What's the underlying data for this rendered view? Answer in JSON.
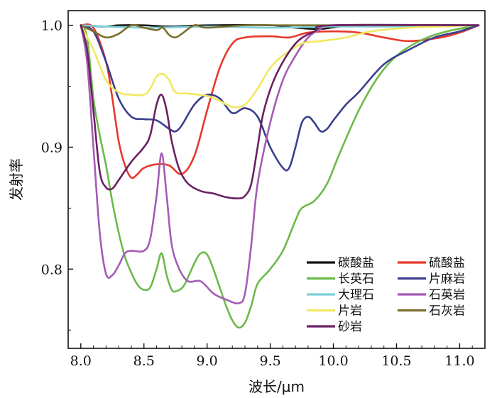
{
  "chart_data": {
    "type": "line",
    "title": "",
    "xlabel": "波长/μm",
    "ylabel": "发射率",
    "xlim": [
      7.9,
      11.2
    ],
    "ylim": [
      0.735,
      1.012
    ],
    "xticks": [
      8.0,
      8.5,
      9.0,
      9.5,
      10.0,
      10.5,
      11.0
    ],
    "xtick_labels": [
      "8.0",
      "8.5",
      "9.0",
      "9.5",
      "10.0",
      "10.5",
      "11.0"
    ],
    "yticks": [
      0.8,
      0.9,
      1.0
    ],
    "ytick_labels": [
      "0.8",
      "0.9",
      "1.0"
    ],
    "grid": false,
    "legend_position": "bottom-right",
    "series": [
      {
        "name": "碳酸盐",
        "color": "#111111",
        "points": [
          [
            8.0,
            1.0
          ],
          [
            8.2,
            0.999
          ],
          [
            8.3,
            1.0
          ],
          [
            8.5,
            1.0
          ],
          [
            8.7,
            0.999
          ],
          [
            9.0,
            1.0
          ],
          [
            9.5,
            1.0
          ],
          [
            9.7,
            0.998
          ],
          [
            9.9,
            0.997
          ],
          [
            10.2,
            1.0
          ],
          [
            11.15,
            1.0
          ]
        ]
      },
      {
        "name": "硫酸盐",
        "color": "#e8382a",
        "points": [
          [
            8.0,
            1.0
          ],
          [
            8.1,
            0.998
          ],
          [
            8.2,
            0.97
          ],
          [
            8.25,
            0.94
          ],
          [
            8.3,
            0.905
          ],
          [
            8.35,
            0.885
          ],
          [
            8.4,
            0.875
          ],
          [
            8.45,
            0.878
          ],
          [
            8.5,
            0.883
          ],
          [
            8.6,
            0.886
          ],
          [
            8.7,
            0.885
          ],
          [
            8.8,
            0.878
          ],
          [
            8.9,
            0.893
          ],
          [
            9.0,
            0.93
          ],
          [
            9.1,
            0.965
          ],
          [
            9.2,
            0.985
          ],
          [
            9.3,
            0.99
          ],
          [
            9.5,
            0.991
          ],
          [
            9.65,
            0.99
          ],
          [
            9.8,
            0.994
          ],
          [
            10.0,
            0.995
          ],
          [
            10.2,
            0.994
          ],
          [
            10.4,
            0.99
          ],
          [
            10.6,
            0.987
          ],
          [
            10.85,
            0.99
          ],
          [
            11.0,
            0.994
          ],
          [
            11.15,
            1.0
          ]
        ]
      },
      {
        "name": "长英石",
        "color": "#6cba48",
        "points": [
          [
            8.0,
            1.0
          ],
          [
            8.05,
            0.99
          ],
          [
            8.1,
            0.94
          ],
          [
            8.15,
            0.91
          ],
          [
            8.2,
            0.885
          ],
          [
            8.25,
            0.855
          ],
          [
            8.3,
            0.83
          ],
          [
            8.35,
            0.81
          ],
          [
            8.4,
            0.797
          ],
          [
            8.45,
            0.787
          ],
          [
            8.5,
            0.783
          ],
          [
            8.55,
            0.785
          ],
          [
            8.6,
            0.8
          ],
          [
            8.64,
            0.813
          ],
          [
            8.68,
            0.795
          ],
          [
            8.72,
            0.783
          ],
          [
            8.76,
            0.782
          ],
          [
            8.82,
            0.787
          ],
          [
            8.9,
            0.805
          ],
          [
            8.95,
            0.813
          ],
          [
            9.0,
            0.812
          ],
          [
            9.05,
            0.8
          ],
          [
            9.1,
            0.785
          ],
          [
            9.15,
            0.77
          ],
          [
            9.2,
            0.758
          ],
          [
            9.25,
            0.752
          ],
          [
            9.3,
            0.756
          ],
          [
            9.35,
            0.77
          ],
          [
            9.4,
            0.788
          ],
          [
            9.5,
            0.8
          ],
          [
            9.6,
            0.815
          ],
          [
            9.7,
            0.84
          ],
          [
            9.75,
            0.85
          ],
          [
            9.85,
            0.856
          ],
          [
            9.95,
            0.87
          ],
          [
            10.05,
            0.895
          ],
          [
            10.2,
            0.93
          ],
          [
            10.35,
            0.957
          ],
          [
            10.5,
            0.975
          ],
          [
            10.7,
            0.988
          ],
          [
            10.9,
            0.995
          ],
          [
            11.15,
            1.0
          ]
        ]
      },
      {
        "name": "片麻岩",
        "color": "#3b3f8e",
        "points": [
          [
            8.0,
            1.0
          ],
          [
            8.1,
            0.995
          ],
          [
            8.2,
            0.97
          ],
          [
            8.3,
            0.94
          ],
          [
            8.4,
            0.925
          ],
          [
            8.5,
            0.923
          ],
          [
            8.6,
            0.922
          ],
          [
            8.7,
            0.915
          ],
          [
            8.75,
            0.913
          ],
          [
            8.8,
            0.918
          ],
          [
            8.9,
            0.935
          ],
          [
            9.0,
            0.943
          ],
          [
            9.1,
            0.94
          ],
          [
            9.2,
            0.928
          ],
          [
            9.3,
            0.932
          ],
          [
            9.4,
            0.925
          ],
          [
            9.5,
            0.9
          ],
          [
            9.6,
            0.883
          ],
          [
            9.65,
            0.883
          ],
          [
            9.7,
            0.9
          ],
          [
            9.75,
            0.92
          ],
          [
            9.8,
            0.925
          ],
          [
            9.85,
            0.92
          ],
          [
            9.9,
            0.913
          ],
          [
            9.95,
            0.915
          ],
          [
            10.0,
            0.922
          ],
          [
            10.1,
            0.935
          ],
          [
            10.2,
            0.945
          ],
          [
            10.4,
            0.968
          ],
          [
            10.6,
            0.98
          ],
          [
            10.8,
            0.99
          ],
          [
            11.0,
            0.995
          ],
          [
            11.15,
            1.0
          ]
        ]
      },
      {
        "name": "大理石",
        "color": "#7ecdd6",
        "points": [
          [
            8.0,
            1.0
          ],
          [
            8.5,
            0.998
          ],
          [
            9.0,
            0.999
          ],
          [
            9.5,
            0.998
          ],
          [
            10.0,
            0.999
          ],
          [
            10.5,
            0.999
          ],
          [
            11.15,
            1.0
          ]
        ]
      },
      {
        "name": "石英岩",
        "color": "#a45cb6",
        "points": [
          [
            8.0,
            1.0
          ],
          [
            8.05,
            0.97
          ],
          [
            8.1,
            0.9
          ],
          [
            8.15,
            0.83
          ],
          [
            8.2,
            0.796
          ],
          [
            8.25,
            0.795
          ],
          [
            8.3,
            0.803
          ],
          [
            8.35,
            0.813
          ],
          [
            8.4,
            0.815
          ],
          [
            8.5,
            0.815
          ],
          [
            8.55,
            0.825
          ],
          [
            8.6,
            0.86
          ],
          [
            8.64,
            0.895
          ],
          [
            8.68,
            0.86
          ],
          [
            8.72,
            0.82
          ],
          [
            8.78,
            0.8
          ],
          [
            8.85,
            0.79
          ],
          [
            8.95,
            0.79
          ],
          [
            9.05,
            0.78
          ],
          [
            9.15,
            0.775
          ],
          [
            9.25,
            0.772
          ],
          [
            9.3,
            0.78
          ],
          [
            9.35,
            0.82
          ],
          [
            9.4,
            0.87
          ],
          [
            9.5,
            0.92
          ],
          [
            9.6,
            0.955
          ],
          [
            9.7,
            0.975
          ],
          [
            9.8,
            0.99
          ],
          [
            9.9,
            0.997
          ],
          [
            10.0,
            1.0
          ],
          [
            11.15,
            1.0
          ]
        ]
      },
      {
        "name": "片岩",
        "color": "#f1e860",
        "points": [
          [
            8.0,
            1.0
          ],
          [
            8.1,
            0.98
          ],
          [
            8.2,
            0.955
          ],
          [
            8.3,
            0.945
          ],
          [
            8.4,
            0.943
          ],
          [
            8.5,
            0.943
          ],
          [
            8.55,
            0.948
          ],
          [
            8.6,
            0.958
          ],
          [
            8.65,
            0.96
          ],
          [
            8.7,
            0.955
          ],
          [
            8.75,
            0.945
          ],
          [
            8.85,
            0.944
          ],
          [
            9.0,
            0.942
          ],
          [
            9.1,
            0.938
          ],
          [
            9.2,
            0.933
          ],
          [
            9.3,
            0.935
          ],
          [
            9.4,
            0.948
          ],
          [
            9.5,
            0.965
          ],
          [
            9.6,
            0.975
          ],
          [
            9.75,
            0.985
          ],
          [
            9.9,
            0.987
          ],
          [
            10.1,
            0.99
          ],
          [
            10.3,
            0.995
          ],
          [
            10.6,
            0.998
          ],
          [
            11.15,
            1.0
          ]
        ]
      },
      {
        "name": "石灰岩",
        "color": "#7a6e2c",
        "points": [
          [
            8.0,
            1.0
          ],
          [
            8.1,
            0.995
          ],
          [
            8.2,
            0.99
          ],
          [
            8.3,
            0.993
          ],
          [
            8.4,
            1.0
          ],
          [
            8.5,
            0.998
          ],
          [
            8.6,
            0.996
          ],
          [
            8.65,
            0.998
          ],
          [
            8.7,
            0.992
          ],
          [
            8.75,
            0.99
          ],
          [
            8.8,
            0.993
          ],
          [
            8.9,
            1.0
          ],
          [
            9.0,
            0.998
          ],
          [
            9.3,
            1.0
          ],
          [
            9.6,
            1.0
          ],
          [
            10.0,
            1.0
          ],
          [
            11.15,
            1.0
          ]
        ]
      },
      {
        "name": "砂岩",
        "color": "#6a2163",
        "points": [
          [
            8.0,
            1.0
          ],
          [
            8.05,
            0.98
          ],
          [
            8.1,
            0.93
          ],
          [
            8.15,
            0.88
          ],
          [
            8.2,
            0.867
          ],
          [
            8.25,
            0.866
          ],
          [
            8.3,
            0.873
          ],
          [
            8.4,
            0.888
          ],
          [
            8.5,
            0.9
          ],
          [
            8.55,
            0.91
          ],
          [
            8.6,
            0.935
          ],
          [
            8.64,
            0.943
          ],
          [
            8.68,
            0.93
          ],
          [
            8.72,
            0.905
          ],
          [
            8.78,
            0.882
          ],
          [
            8.85,
            0.87
          ],
          [
            8.95,
            0.864
          ],
          [
            9.05,
            0.862
          ],
          [
            9.15,
            0.859
          ],
          [
            9.25,
            0.858
          ],
          [
            9.3,
            0.86
          ],
          [
            9.35,
            0.87
          ],
          [
            9.4,
            0.9
          ],
          [
            9.45,
            0.93
          ],
          [
            9.55,
            0.96
          ],
          [
            9.7,
            0.985
          ],
          [
            9.85,
            0.995
          ],
          [
            10.0,
            1.0
          ],
          [
            11.15,
            1.0
          ]
        ]
      }
    ],
    "legend": [
      {
        "name": "碳酸盐",
        "color": "#111111"
      },
      {
        "name": "硫酸盐",
        "color": "#e8382a"
      },
      {
        "name": "长英石",
        "color": "#6cba48"
      },
      {
        "name": "片麻岩",
        "color": "#3b3f8e"
      },
      {
        "name": "大理石",
        "color": "#7ecdd6"
      },
      {
        "name": "石英岩",
        "color": "#a45cb6"
      },
      {
        "name": "片岩",
        "color": "#f1e860"
      },
      {
        "name": "石灰岩",
        "color": "#7a6e2c"
      },
      {
        "name": "砂岩",
        "color": "#6a2163"
      }
    ]
  }
}
